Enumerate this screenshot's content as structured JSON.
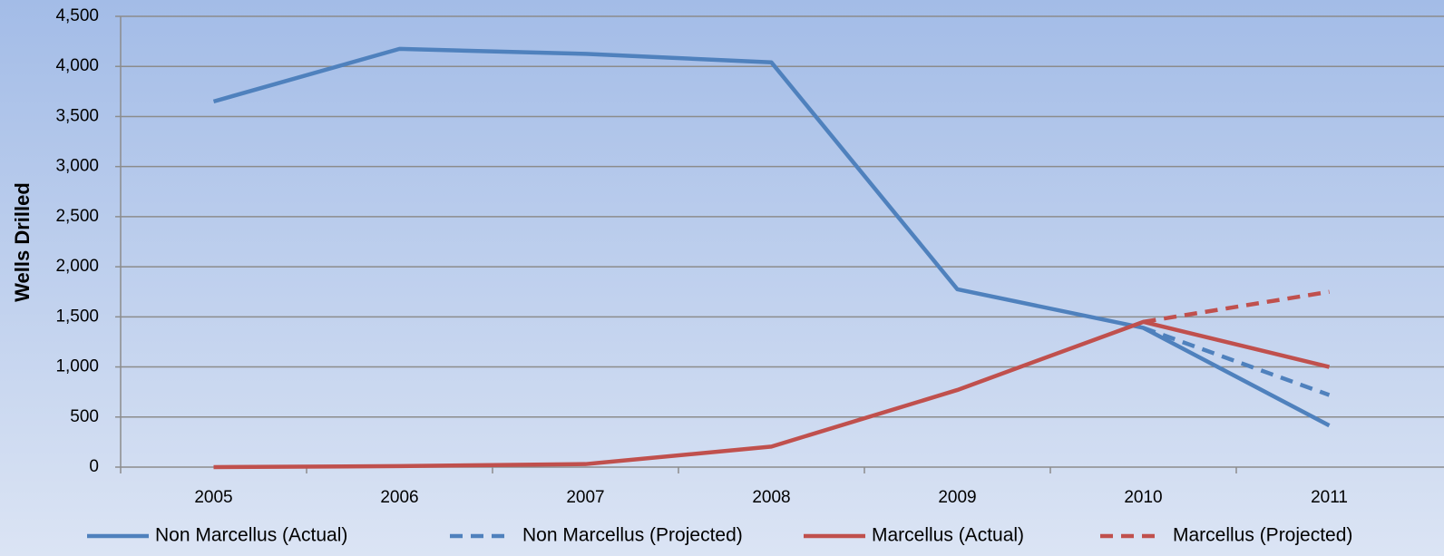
{
  "chart_data": {
    "type": "line",
    "y_label": "Wells Drilled",
    "categories": [
      "2005",
      "2006",
      "2007",
      "2008",
      "2009",
      "2010",
      "2011"
    ],
    "series": [
      {
        "name": "Non Marcellus (Actual)",
        "color": "#4f81bd",
        "style": "solid",
        "values": [
          3650,
          4175,
          4125,
          4040,
          1775,
          1390,
          415
        ]
      },
      {
        "name": "Non Marcellus (Projected)",
        "color": "#4f81bd",
        "style": "dashed",
        "values": [
          null,
          null,
          null,
          null,
          null,
          1390,
          720
        ]
      },
      {
        "name": "Marcellus (Actual)",
        "color": "#c0504d",
        "style": "solid",
        "values": [
          0,
          10,
          30,
          205,
          770,
          1450,
          1000
        ]
      },
      {
        "name": "Marcellus (Projected)",
        "color": "#c0504d",
        "style": "dashed",
        "values": [
          null,
          null,
          null,
          null,
          null,
          1450,
          1750
        ]
      }
    ],
    "ylim": [
      0,
      4500
    ],
    "yticks": [
      0,
      500,
      {
        "value": 1000,
        "label": "1,000"
      },
      {
        "value": 1500,
        "label": "1,500"
      },
      {
        "value": 2000,
        "label": "2,000"
      },
      {
        "value": 2500,
        "label": "2,500"
      },
      {
        "value": 3000,
        "label": "3,000"
      },
      {
        "value": 3500,
        "label": "3,500"
      },
      {
        "value": 4000,
        "label": "4,000"
      },
      {
        "value": 4500,
        "label": "4,500"
      }
    ],
    "grid": true,
    "legend": "bottom"
  }
}
